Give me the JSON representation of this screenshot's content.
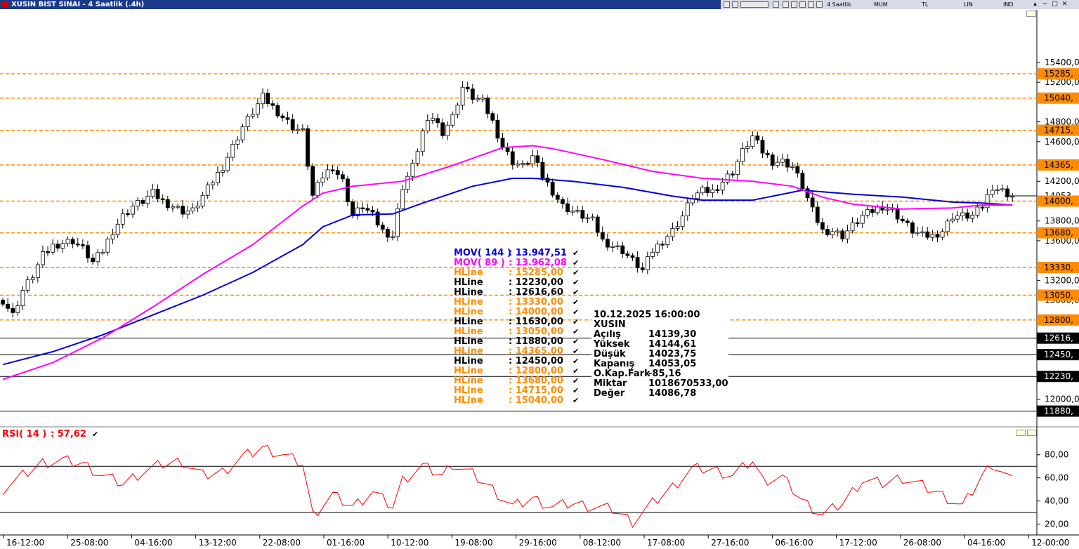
{
  "window": {
    "title": "XUSIN BIST SINAI - 4 Saatlik (.4h)",
    "toolbar": {
      "period": "4 Saatlik",
      "style": "MUM",
      "currency": "TL",
      "scale": "LIN",
      "indicator": "IND"
    }
  },
  "colors": {
    "up_candle": "#ffffff",
    "down_candle": "#000000",
    "mov144": "#0000dd",
    "mov89": "#ff00ff",
    "hline_orange": "#ff8c00",
    "hline_black": "#000000",
    "rsi": "#ff0000"
  },
  "chart_data": [
    {
      "type": "candlestick",
      "symbol": "XUSIN",
      "x_ticks": [
        "16-12:00",
        "25-08:00",
        "04-16:00",
        "13-12:00",
        "22-08:00",
        "01-16:00",
        "10-12:00",
        "19-08:00",
        "29-16:00",
        "08-12:00",
        "17-08:00",
        "27-16:00",
        "06-16:00",
        "17-12:00",
        "26-08:00",
        "04-16:00",
        "12-00:00"
      ],
      "y_ticks": [
        "15400,00",
        "15200,00",
        "14800,00",
        "14600,00",
        "14200,00",
        "13800,00",
        "13600,00",
        "13200,00",
        "13000,00",
        "12000,00"
      ],
      "ylim": [
        11870,
        15520
      ],
      "hlines": [
        {
          "value": 15285,
          "color": "orange",
          "label": "15285,"
        },
        {
          "value": 15040,
          "color": "orange",
          "label": "15040,"
        },
        {
          "value": 14715,
          "color": "orange",
          "label": "14715,"
        },
        {
          "value": 14365,
          "color": "orange",
          "label": "14365,"
        },
        {
          "value": 14000,
          "color": "orange",
          "label": "14000,"
        },
        {
          "value": 13680,
          "color": "orange",
          "label": "13680,"
        },
        {
          "value": 13330,
          "color": "orange",
          "label": "13330,"
        },
        {
          "value": 13050,
          "color": "orange",
          "label": "13050,"
        },
        {
          "value": 12800,
          "color": "orange",
          "label": "12800,"
        },
        {
          "value": 12616.6,
          "color": "black",
          "label": "12616,"
        },
        {
          "value": 12450,
          "color": "black",
          "label": "12450,"
        },
        {
          "value": 12230,
          "color": "black",
          "label": "12230,"
        },
        {
          "value": 11880,
          "color": "black",
          "label": "11880,"
        }
      ],
      "last_price_label": "14053",
      "close_path": [
        [
          0,
          13000
        ],
        [
          2,
          12850
        ],
        [
          4,
          13100
        ],
        [
          6,
          13250
        ],
        [
          8,
          13450
        ],
        [
          10,
          13550
        ],
        [
          12,
          13580
        ],
        [
          14,
          13600
        ],
        [
          16,
          13520
        ],
        [
          18,
          13380
        ],
        [
          20,
          13500
        ],
        [
          22,
          13700
        ],
        [
          24,
          13850
        ],
        [
          26,
          13950
        ],
        [
          28,
          14000
        ],
        [
          30,
          14080
        ],
        [
          32,
          14000
        ],
        [
          34,
          13950
        ],
        [
          36,
          13900
        ],
        [
          38,
          13900
        ],
        [
          40,
          14050
        ],
        [
          42,
          14200
        ],
        [
          44,
          14350
        ],
        [
          46,
          14550
        ],
        [
          48,
          14750
        ],
        [
          50,
          14900
        ],
        [
          52,
          15050
        ],
        [
          54,
          14950
        ],
        [
          56,
          14850
        ],
        [
          58,
          14750
        ],
        [
          60,
          14700
        ],
        [
          62,
          14050
        ],
        [
          64,
          14250
        ],
        [
          66,
          14350
        ],
        [
          68,
          14200
        ],
        [
          70,
          13850
        ],
        [
          72,
          13950
        ],
        [
          74,
          13850
        ],
        [
          76,
          13700
        ],
        [
          78,
          13650
        ],
        [
          80,
          14150
        ],
        [
          82,
          14350
        ],
        [
          84,
          14700
        ],
        [
          86,
          14850
        ],
        [
          88,
          14700
        ],
        [
          90,
          14850
        ],
        [
          92,
          15150
        ],
        [
          94,
          15050
        ],
        [
          96,
          15000
        ],
        [
          98,
          14800
        ],
        [
          100,
          14550
        ],
        [
          102,
          14400
        ],
        [
          104,
          14350
        ],
        [
          106,
          14450
        ],
        [
          108,
          14250
        ],
        [
          110,
          14100
        ],
        [
          112,
          13950
        ],
        [
          114,
          13900
        ],
        [
          116,
          13850
        ],
        [
          118,
          13800
        ],
        [
          120,
          13600
        ],
        [
          122,
          13550
        ],
        [
          124,
          13500
        ],
        [
          126,
          13400
        ],
        [
          128,
          13300
        ],
        [
          130,
          13500
        ],
        [
          132,
          13600
        ],
        [
          134,
          13700
        ],
        [
          136,
          13850
        ],
        [
          138,
          14050
        ],
        [
          140,
          14100
        ],
        [
          142,
          14100
        ],
        [
          144,
          14200
        ],
        [
          146,
          14300
        ],
        [
          148,
          14500
        ],
        [
          150,
          14650
        ],
        [
          152,
          14500
        ],
        [
          154,
          14400
        ],
        [
          156,
          14400
        ],
        [
          158,
          14350
        ],
        [
          160,
          14150
        ],
        [
          162,
          13900
        ],
        [
          164,
          13700
        ],
        [
          166,
          13700
        ],
        [
          168,
          13650
        ],
        [
          170,
          13750
        ],
        [
          172,
          13850
        ],
        [
          174,
          13900
        ],
        [
          176,
          13950
        ],
        [
          178,
          13900
        ],
        [
          180,
          13800
        ],
        [
          182,
          13700
        ],
        [
          184,
          13650
        ],
        [
          186,
          13650
        ],
        [
          188,
          13700
        ],
        [
          190,
          13850
        ],
        [
          192,
          13850
        ],
        [
          194,
          13850
        ],
        [
          196,
          13950
        ],
        [
          198,
          14150
        ],
        [
          200,
          14100
        ],
        [
          202,
          14050
        ]
      ],
      "series": [
        {
          "name": "MOV( 144 )",
          "value_label": "13.947,51",
          "path": [
            [
              0,
              12350
            ],
            [
              10,
              12480
            ],
            [
              20,
              12650
            ],
            [
              30,
              12850
            ],
            [
              40,
              13050
            ],
            [
              50,
              13280
            ],
            [
              60,
              13560
            ],
            [
              64,
              13740
            ],
            [
              70,
              13860
            ],
            [
              78,
              13870
            ],
            [
              84,
              13980
            ],
            [
              94,
              14150
            ],
            [
              102,
              14230
            ],
            [
              106,
              14230
            ],
            [
              114,
              14200
            ],
            [
              124,
              14140
            ],
            [
              134,
              14050
            ],
            [
              140,
              14010
            ],
            [
              150,
              14010
            ],
            [
              160,
              14110
            ],
            [
              170,
              14070
            ],
            [
              180,
              14040
            ],
            [
              190,
              13990
            ],
            [
              196,
              13980
            ],
            [
              202,
              13960
            ]
          ]
        },
        {
          "name": "MOV( 89 )",
          "value_label": "13.962,08",
          "path": [
            [
              0,
              12200
            ],
            [
              10,
              12370
            ],
            [
              20,
              12620
            ],
            [
              30,
              12930
            ],
            [
              40,
              13260
            ],
            [
              50,
              13560
            ],
            [
              60,
              13950
            ],
            [
              64,
              14080
            ],
            [
              70,
              14150
            ],
            [
              80,
              14200
            ],
            [
              90,
              14360
            ],
            [
              100,
              14540
            ],
            [
              106,
              14560
            ],
            [
              110,
              14530
            ],
            [
              120,
              14420
            ],
            [
              130,
              14300
            ],
            [
              140,
              14230
            ],
            [
              150,
              14200
            ],
            [
              158,
              14150
            ],
            [
              164,
              14040
            ],
            [
              170,
              13970
            ],
            [
              180,
              13920
            ],
            [
              190,
              13930
            ],
            [
              196,
              13960
            ],
            [
              202,
              13960
            ]
          ]
        }
      ],
      "legend_hlines": [
        {
          "name": "HLine",
          "value_label": "15285,00",
          "color": "orange"
        },
        {
          "name": "HLine",
          "value_label": "12230,00",
          "color": "black"
        },
        {
          "name": "HLine",
          "value_label": "12616,60",
          "color": "black"
        },
        {
          "name": "HLine",
          "value_label": "13330,00",
          "color": "orange"
        },
        {
          "name": "HLine",
          "value_label": "14000,00",
          "color": "orange"
        },
        {
          "name": "HLine",
          "value_label": "11630,00",
          "color": "black"
        },
        {
          "name": "HLine",
          "value_label": "13050,00",
          "color": "orange"
        },
        {
          "name": "HLine",
          "value_label": "11880,00",
          "color": "black"
        },
        {
          "name": "HLine",
          "value_label": "14365,00",
          "color": "orange"
        },
        {
          "name": "HLine",
          "value_label": "12450,00",
          "color": "black"
        },
        {
          "name": "HLine",
          "value_label": "12800,00",
          "color": "orange"
        },
        {
          "name": "HLine",
          "value_label": "13680,00",
          "color": "orange"
        },
        {
          "name": "HLine",
          "value_label": "14715,00",
          "color": "orange"
        },
        {
          "name": "HLine",
          "value_label": "15040,00",
          "color": "orange"
        }
      ],
      "info_box": {
        "datetime": "10.12.2025  16:00:00",
        "symbol": "XUSIN",
        "rows": [
          {
            "label": "Açılış",
            "value": "14139,30"
          },
          {
            "label": "Yüksek",
            "value": "14144,61"
          },
          {
            "label": "Düşük",
            "value": "14023,75"
          },
          {
            "label": "Kapanış",
            "value": "14053,05"
          },
          {
            "label": "O.Kap.Fark",
            "value": "-85,16"
          },
          {
            "label": "Miktar",
            "value": "1018670533,00"
          },
          {
            "label": "Değer",
            "value": "14086,78"
          }
        ]
      }
    },
    {
      "type": "line",
      "title": "RSI( 14 )",
      "value_label": "57,62",
      "y_ticks": [
        "80,00",
        "60,00",
        "40,00",
        "20,00"
      ],
      "ylim": [
        13,
        92
      ],
      "levels": [
        70,
        30
      ],
      "path": [
        [
          0,
          50
        ],
        [
          4,
          62
        ],
        [
          8,
          73
        ],
        [
          12,
          75
        ],
        [
          16,
          72
        ],
        [
          20,
          62
        ],
        [
          24,
          55
        ],
        [
          28,
          65
        ],
        [
          32,
          72
        ],
        [
          36,
          74
        ],
        [
          40,
          62
        ],
        [
          44,
          65
        ],
        [
          48,
          78
        ],
        [
          52,
          86
        ],
        [
          56,
          80
        ],
        [
          60,
          72
        ],
        [
          62,
          28
        ],
        [
          66,
          45
        ],
        [
          70,
          35
        ],
        [
          74,
          48
        ],
        [
          78,
          35
        ],
        [
          80,
          58
        ],
        [
          84,
          70
        ],
        [
          88,
          62
        ],
        [
          90,
          72
        ],
        [
          94,
          63
        ],
        [
          98,
          50
        ],
        [
          102,
          35
        ],
        [
          106,
          42
        ],
        [
          110,
          35
        ],
        [
          114,
          38
        ],
        [
          118,
          35
        ],
        [
          122,
          33
        ],
        [
          126,
          22
        ],
        [
          130,
          38
        ],
        [
          134,
          52
        ],
        [
          138,
          68
        ],
        [
          142,
          67
        ],
        [
          146,
          62
        ],
        [
          150,
          75
        ],
        [
          152,
          58
        ],
        [
          156,
          60
        ],
        [
          160,
          40
        ],
        [
          164,
          28
        ],
        [
          168,
          38
        ],
        [
          172,
          58
        ],
        [
          176,
          55
        ],
        [
          180,
          60
        ],
        [
          184,
          53
        ],
        [
          188,
          45
        ],
        [
          192,
          35
        ],
        [
          196,
          62
        ],
        [
          198,
          72
        ],
        [
          200,
          65
        ],
        [
          202,
          57
        ]
      ]
    }
  ]
}
